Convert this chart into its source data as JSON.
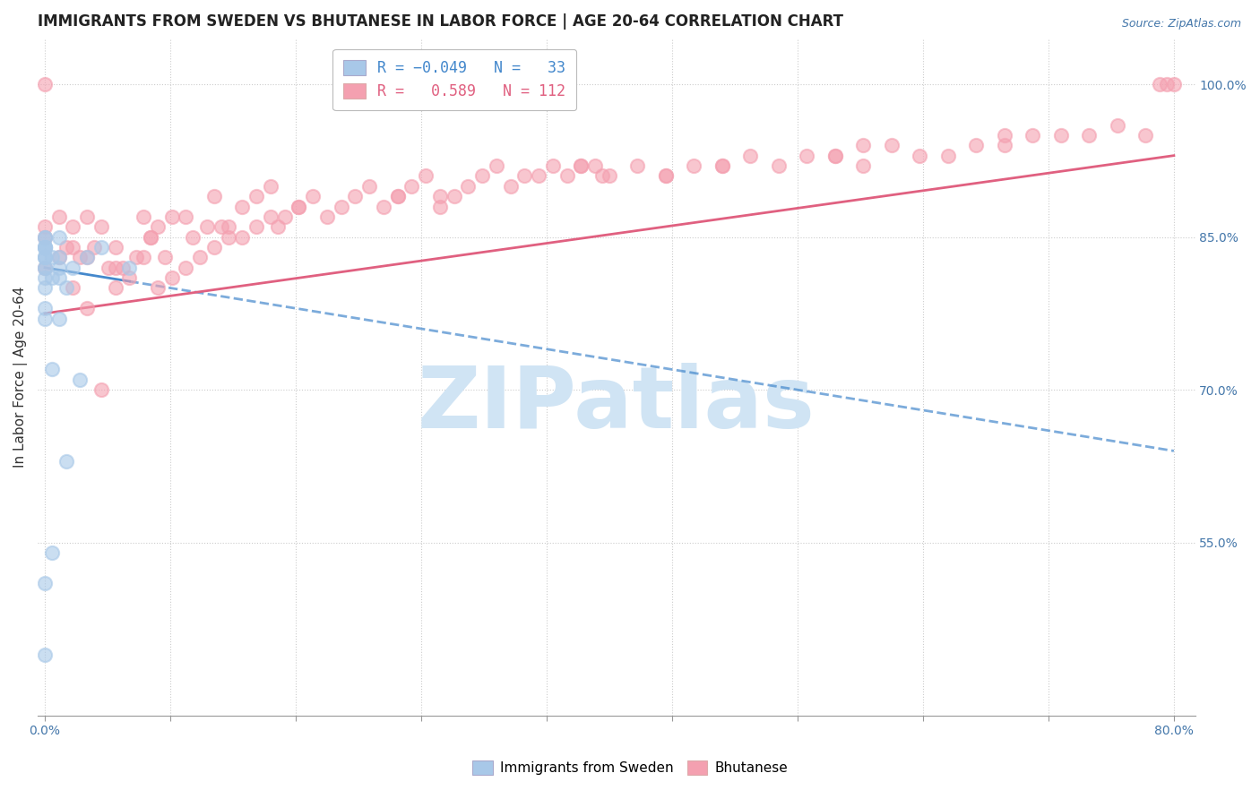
{
  "title": "IMMIGRANTS FROM SWEDEN VS BHUTANESE IN LABOR FORCE | AGE 20-64 CORRELATION CHART",
  "source": "Source: ZipAtlas.com",
  "ylabel": "In Labor Force | Age 20-64",
  "xlim": [
    -0.005,
    0.815
  ],
  "ylim": [
    0.38,
    1.045
  ],
  "xticks": [
    0.0,
    0.08889,
    0.17778,
    0.26667,
    0.35556,
    0.44444,
    0.53333,
    0.62222,
    0.71111,
    0.8
  ],
  "xticklabels": [
    "0.0%",
    "",
    "",
    "",
    "",
    "",
    "",
    "",
    "",
    "80.0%"
  ],
  "yticks_right": [
    0.55,
    0.7,
    0.85,
    1.0
  ],
  "yticklabels_right": [
    "55.0%",
    "70.0%",
    "85.0%",
    "100.0%"
  ],
  "color_sweden": "#a8c8e8",
  "color_bhutanese": "#f4a0b0",
  "color_sweden_line": "#4488cc",
  "color_bhutanese_line": "#e06080",
  "watermark": "ZIPatlas",
  "watermark_color": "#d0e4f4",
  "sweden_x": [
    0.0,
    0.0,
    0.0,
    0.0,
    0.0,
    0.0,
    0.0,
    0.0,
    0.0,
    0.0,
    0.0,
    0.0,
    0.0,
    0.0,
    0.0,
    0.0,
    0.0,
    0.005,
    0.005,
    0.005,
    0.005,
    0.01,
    0.01,
    0.01,
    0.01,
    0.01,
    0.015,
    0.015,
    0.02,
    0.025,
    0.03,
    0.04,
    0.06
  ],
  "sweden_y": [
    0.44,
    0.51,
    0.77,
    0.78,
    0.8,
    0.81,
    0.82,
    0.82,
    0.83,
    0.83,
    0.83,
    0.84,
    0.84,
    0.84,
    0.84,
    0.85,
    0.85,
    0.54,
    0.72,
    0.81,
    0.83,
    0.77,
    0.81,
    0.82,
    0.83,
    0.85,
    0.63,
    0.8,
    0.82,
    0.71,
    0.83,
    0.84,
    0.82
  ],
  "bhutanese_x": [
    0.0,
    0.0,
    0.0,
    0.0,
    0.01,
    0.01,
    0.015,
    0.02,
    0.02,
    0.02,
    0.025,
    0.03,
    0.03,
    0.03,
    0.035,
    0.04,
    0.04,
    0.045,
    0.05,
    0.05,
    0.055,
    0.06,
    0.065,
    0.07,
    0.07,
    0.075,
    0.08,
    0.08,
    0.085,
    0.09,
    0.09,
    0.1,
    0.1,
    0.105,
    0.11,
    0.115,
    0.12,
    0.12,
    0.125,
    0.13,
    0.14,
    0.14,
    0.15,
    0.15,
    0.16,
    0.16,
    0.165,
    0.17,
    0.18,
    0.19,
    0.2,
    0.21,
    0.22,
    0.23,
    0.24,
    0.25,
    0.26,
    0.27,
    0.28,
    0.29,
    0.3,
    0.31,
    0.32,
    0.33,
    0.34,
    0.35,
    0.36,
    0.37,
    0.38,
    0.39,
    0.4,
    0.42,
    0.44,
    0.46,
    0.48,
    0.5,
    0.52,
    0.54,
    0.56,
    0.58,
    0.6,
    0.62,
    0.64,
    0.66,
    0.68,
    0.7,
    0.72,
    0.74,
    0.76,
    0.78,
    0.79,
    0.795,
    0.8,
    0.395,
    0.25,
    0.44,
    0.56,
    0.13,
    0.05,
    0.075,
    0.18,
    0.28,
    0.38,
    0.48,
    0.58,
    0.68
  ],
  "bhutanese_y": [
    0.82,
    0.85,
    0.86,
    1.0,
    0.83,
    0.87,
    0.84,
    0.8,
    0.84,
    0.86,
    0.83,
    0.78,
    0.83,
    0.87,
    0.84,
    0.7,
    0.86,
    0.82,
    0.8,
    0.84,
    0.82,
    0.81,
    0.83,
    0.83,
    0.87,
    0.85,
    0.8,
    0.86,
    0.83,
    0.81,
    0.87,
    0.82,
    0.87,
    0.85,
    0.83,
    0.86,
    0.84,
    0.89,
    0.86,
    0.85,
    0.85,
    0.88,
    0.86,
    0.89,
    0.87,
    0.9,
    0.86,
    0.87,
    0.88,
    0.89,
    0.87,
    0.88,
    0.89,
    0.9,
    0.88,
    0.89,
    0.9,
    0.91,
    0.88,
    0.89,
    0.9,
    0.91,
    0.92,
    0.9,
    0.91,
    0.91,
    0.92,
    0.91,
    0.92,
    0.92,
    0.91,
    0.92,
    0.91,
    0.92,
    0.92,
    0.93,
    0.92,
    0.93,
    0.93,
    0.92,
    0.94,
    0.93,
    0.93,
    0.94,
    0.94,
    0.95,
    0.95,
    0.95,
    0.96,
    0.95,
    1.0,
    1.0,
    1.0,
    0.91,
    0.89,
    0.91,
    0.93,
    0.86,
    0.82,
    0.85,
    0.88,
    0.89,
    0.92,
    0.92,
    0.94,
    0.95
  ],
  "trend_sweden_x0": 0.0,
  "trend_sweden_x1": 0.8,
  "trend_sweden_y0": 0.82,
  "trend_sweden_y1": 0.64,
  "trend_bhutanese_x0": 0.0,
  "trend_bhutanese_x1": 0.8,
  "trend_bhutanese_y0": 0.775,
  "trend_bhutanese_y1": 0.93,
  "title_fontsize": 12,
  "axis_label_fontsize": 11,
  "tick_fontsize": 10,
  "legend_fontsize": 12
}
